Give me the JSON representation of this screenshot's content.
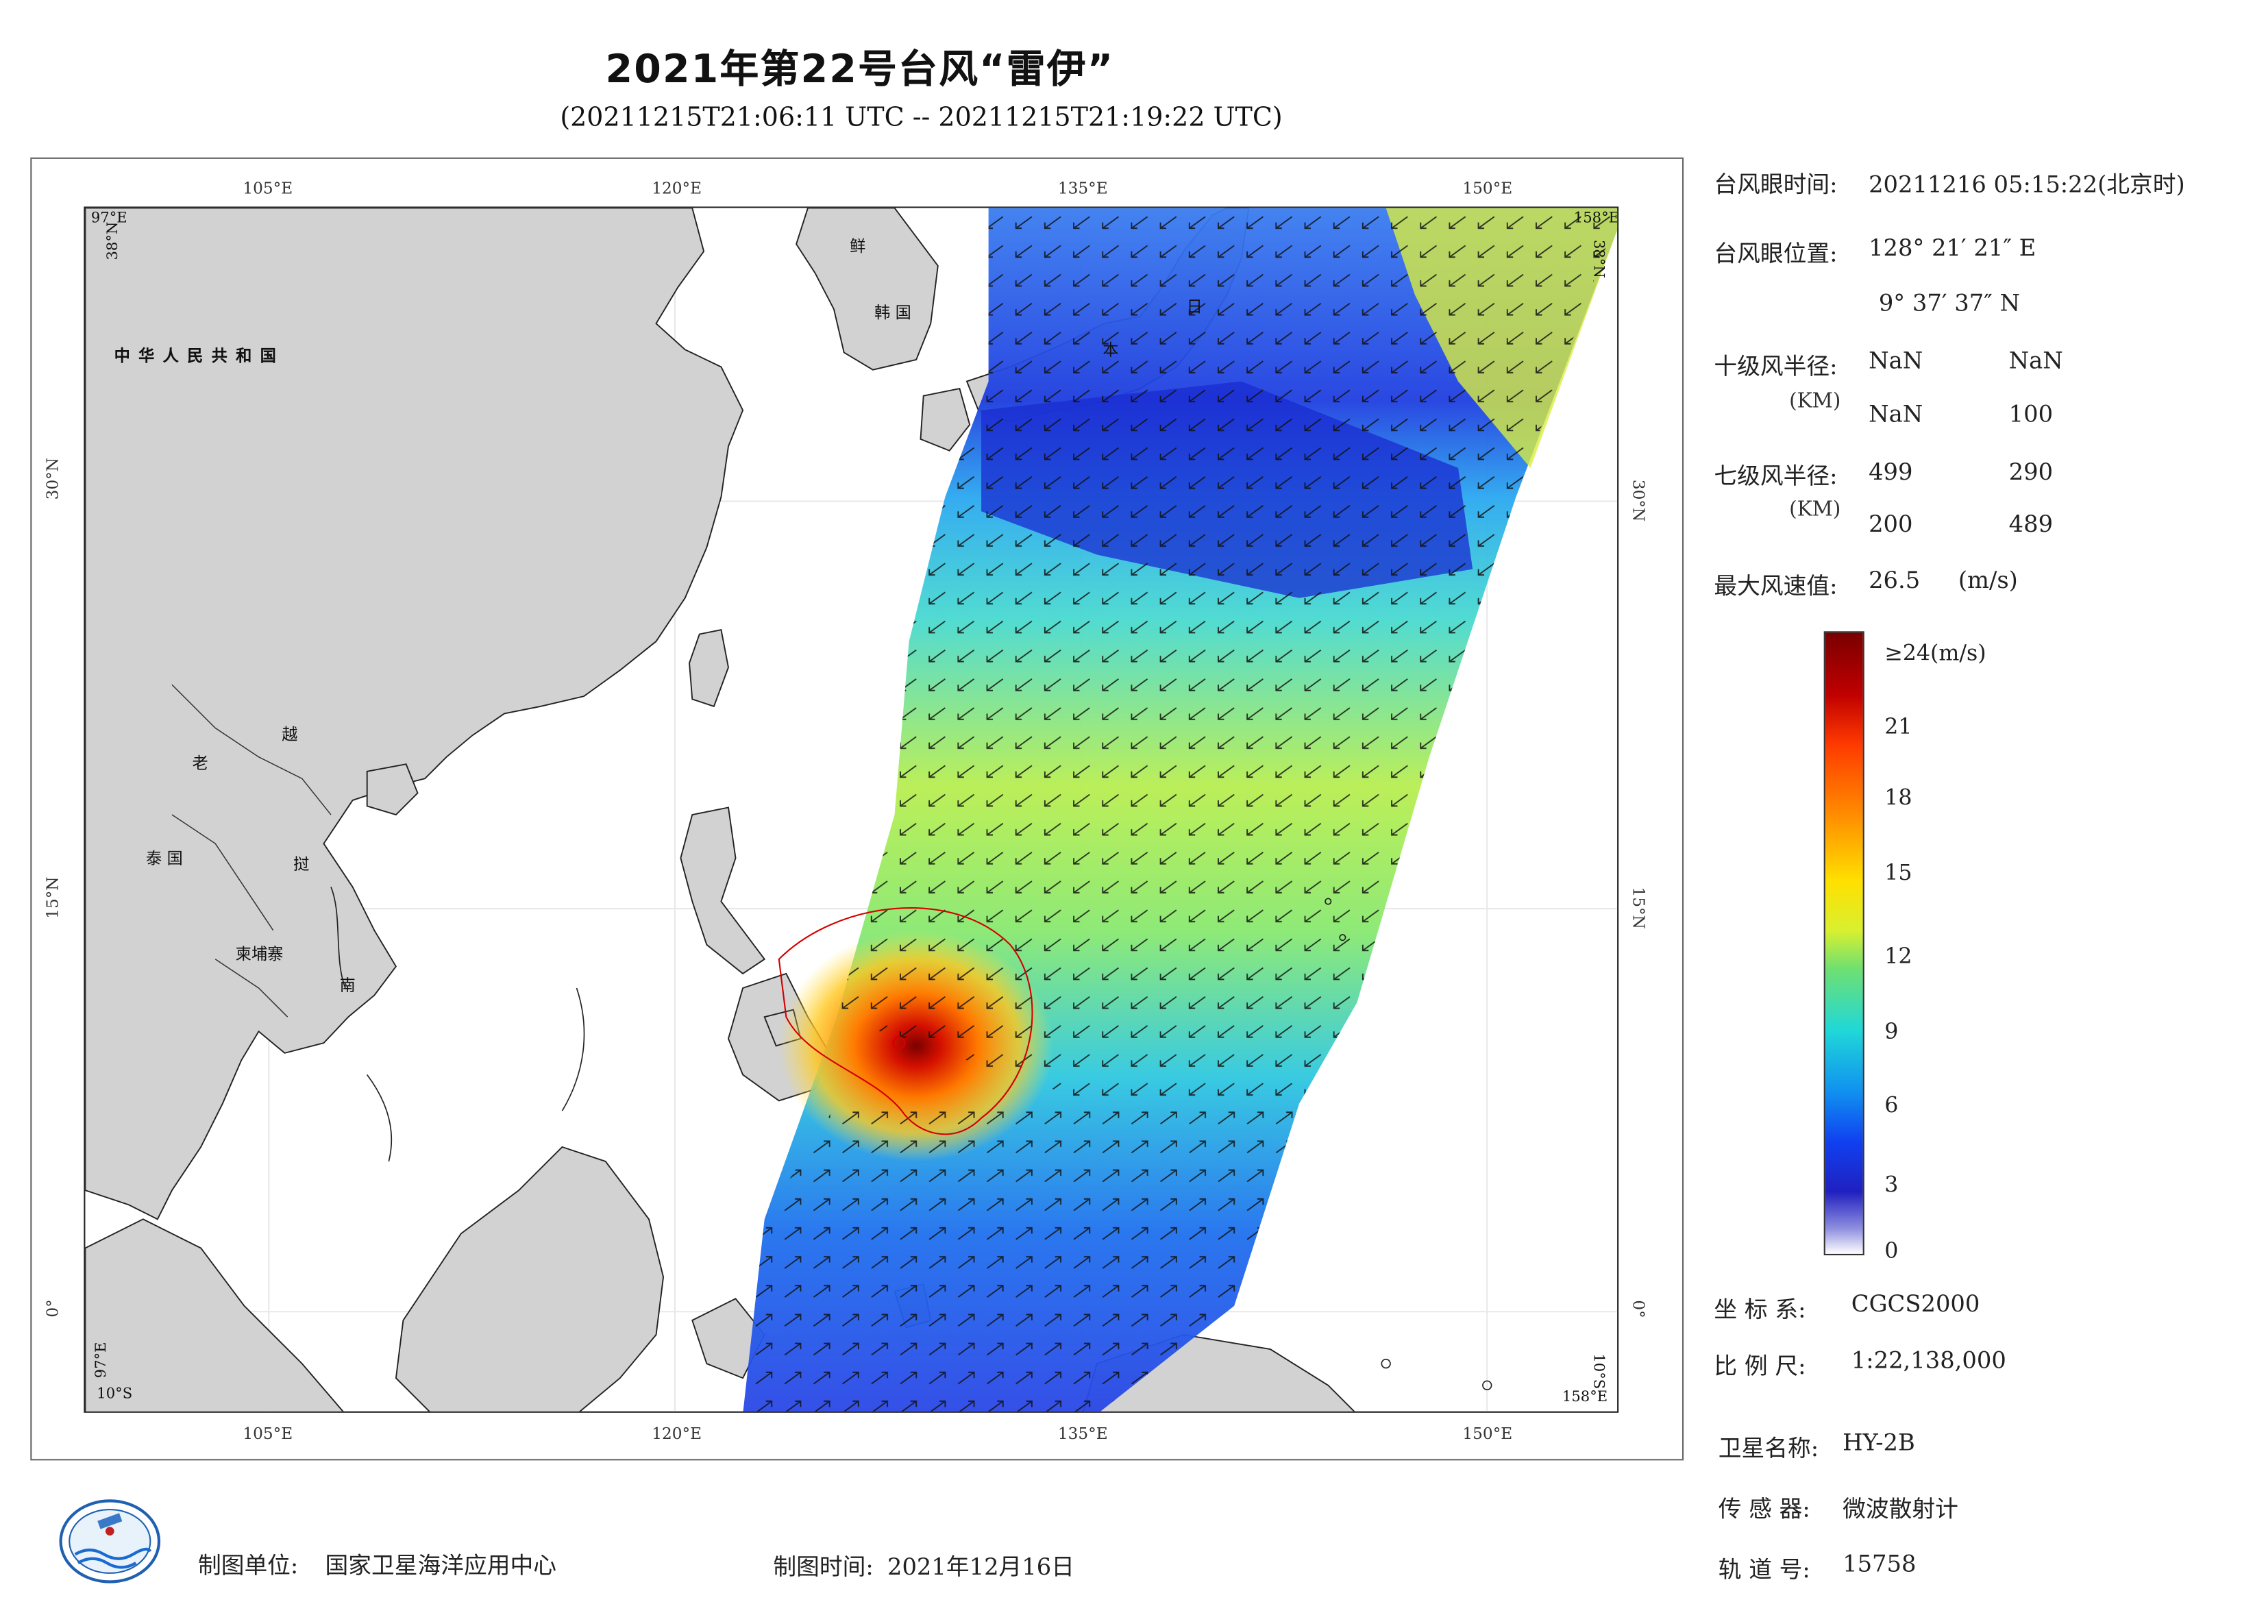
{
  "header": {
    "title": "2021年第22号台风“雷伊”",
    "subtitle": "(20211215T21:06:11 UTC -- 20211215T21:19:22 UTC)"
  },
  "map": {
    "lon_ticks_top": [
      "105°E",
      "120°E",
      "135°E",
      "150°E"
    ],
    "lon_ticks_bottom": [
      "105°E",
      "120°E",
      "135°E",
      "150°E"
    ],
    "lat_ticks_left": [
      "30°N",
      "15°N",
      "0°"
    ],
    "lat_ticks_right": [
      "30°N",
      "15°N",
      "0°"
    ],
    "corner_labels": {
      "top_left_lon": "97°E",
      "top_left_lat": "38°N",
      "top_right_lon": "158°E",
      "top_right_lat": "38°N",
      "bottom_left_lat": "10°S",
      "bottom_left_lon": "97°E",
      "bottom_right_lat": "10°S",
      "bottom_right_lon": "158°E"
    },
    "place_labels": {
      "china": "中 华 人 民 共 和 国",
      "korea_1": "鲜",
      "korea_2": "韩 国",
      "japan_1": "日",
      "japan_2": "本",
      "laos": "老",
      "vietnam_1": "越",
      "vietnam_2": "南",
      "thailand": "泰 国",
      "cambodia": "柬埔寨",
      "vn_mid": "挝"
    },
    "land_color": "#d2d2d2",
    "eye_marker_color": "#d40000"
  },
  "info_panel": {
    "eye_time_label": "台风眼时间:",
    "eye_time_value": "20211216 05:15:22(北京时)",
    "eye_pos_label": "台风眼位置:",
    "eye_lon": "128° 21′ 21″ E",
    "eye_lat": "9° 37′ 37″ N",
    "r10_label": "十级风半径:",
    "r10_unit": "(KM)",
    "r10_values": [
      "NaN",
      "NaN",
      "NaN",
      "100"
    ],
    "r7_label": "七级风半径:",
    "r7_unit": "(KM)",
    "r7_values": [
      "499",
      "290",
      "200",
      "489"
    ],
    "max_wind_label": "最大风速值:",
    "max_wind_value": "26.5",
    "max_wind_unit": "(m/s)"
  },
  "colorbar": {
    "top_label": "≥24(m/s)",
    "ticks": [
      "21",
      "18",
      "15",
      "12",
      "9",
      "6",
      "3",
      "0"
    ]
  },
  "meta": {
    "crs_label": "坐 标 系:",
    "crs_value": "CGCS2000",
    "scale_label": "比 例 尺:",
    "scale_value": "1:22,138,000",
    "satellite_label": "卫星名称:",
    "satellite_value": "HY-2B",
    "sensor_label": "传 感 器:",
    "sensor_value": "微波散射计",
    "orbit_label": "轨 道 号:",
    "orbit_value": "15758"
  },
  "footer": {
    "maker_label": "制图单位:",
    "maker_value": "国家卫星海洋应用中心",
    "date_label": "制图时间:",
    "date_value": "2021年12月16日"
  }
}
